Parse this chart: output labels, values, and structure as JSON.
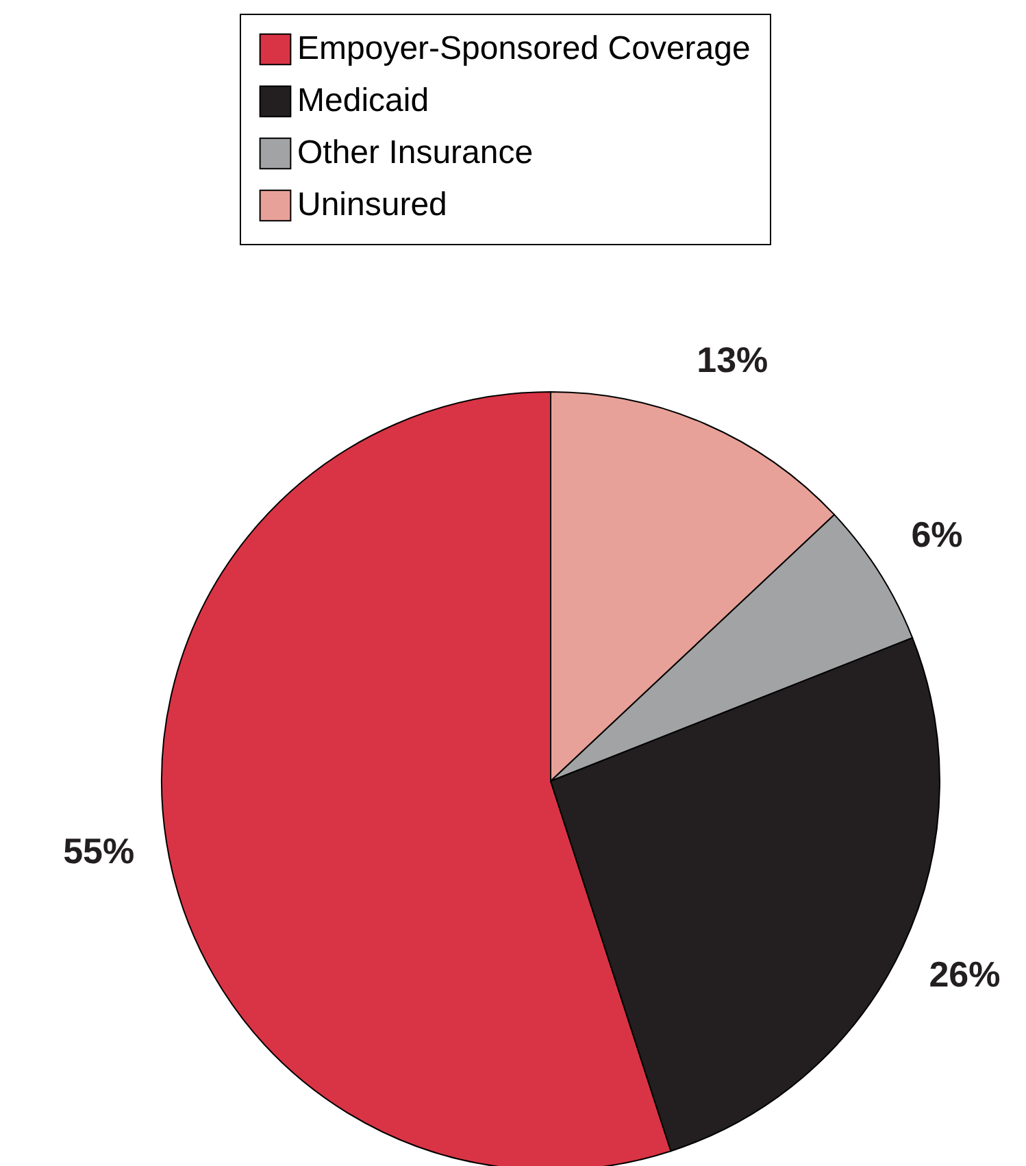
{
  "chart_data": {
    "type": "pie",
    "categories": [
      "Empoyer-Sponsored Coverage",
      "Medicaid",
      "Other Insurance",
      "Uninsured"
    ],
    "values": [
      55,
      26,
      6,
      13
    ],
    "colors": [
      "#d93445",
      "#231f20",
      "#a1a3a5",
      "#e8a198"
    ],
    "value_labels": [
      "55%",
      "26%",
      "6%",
      "13%"
    ],
    "legend": "top"
  }
}
